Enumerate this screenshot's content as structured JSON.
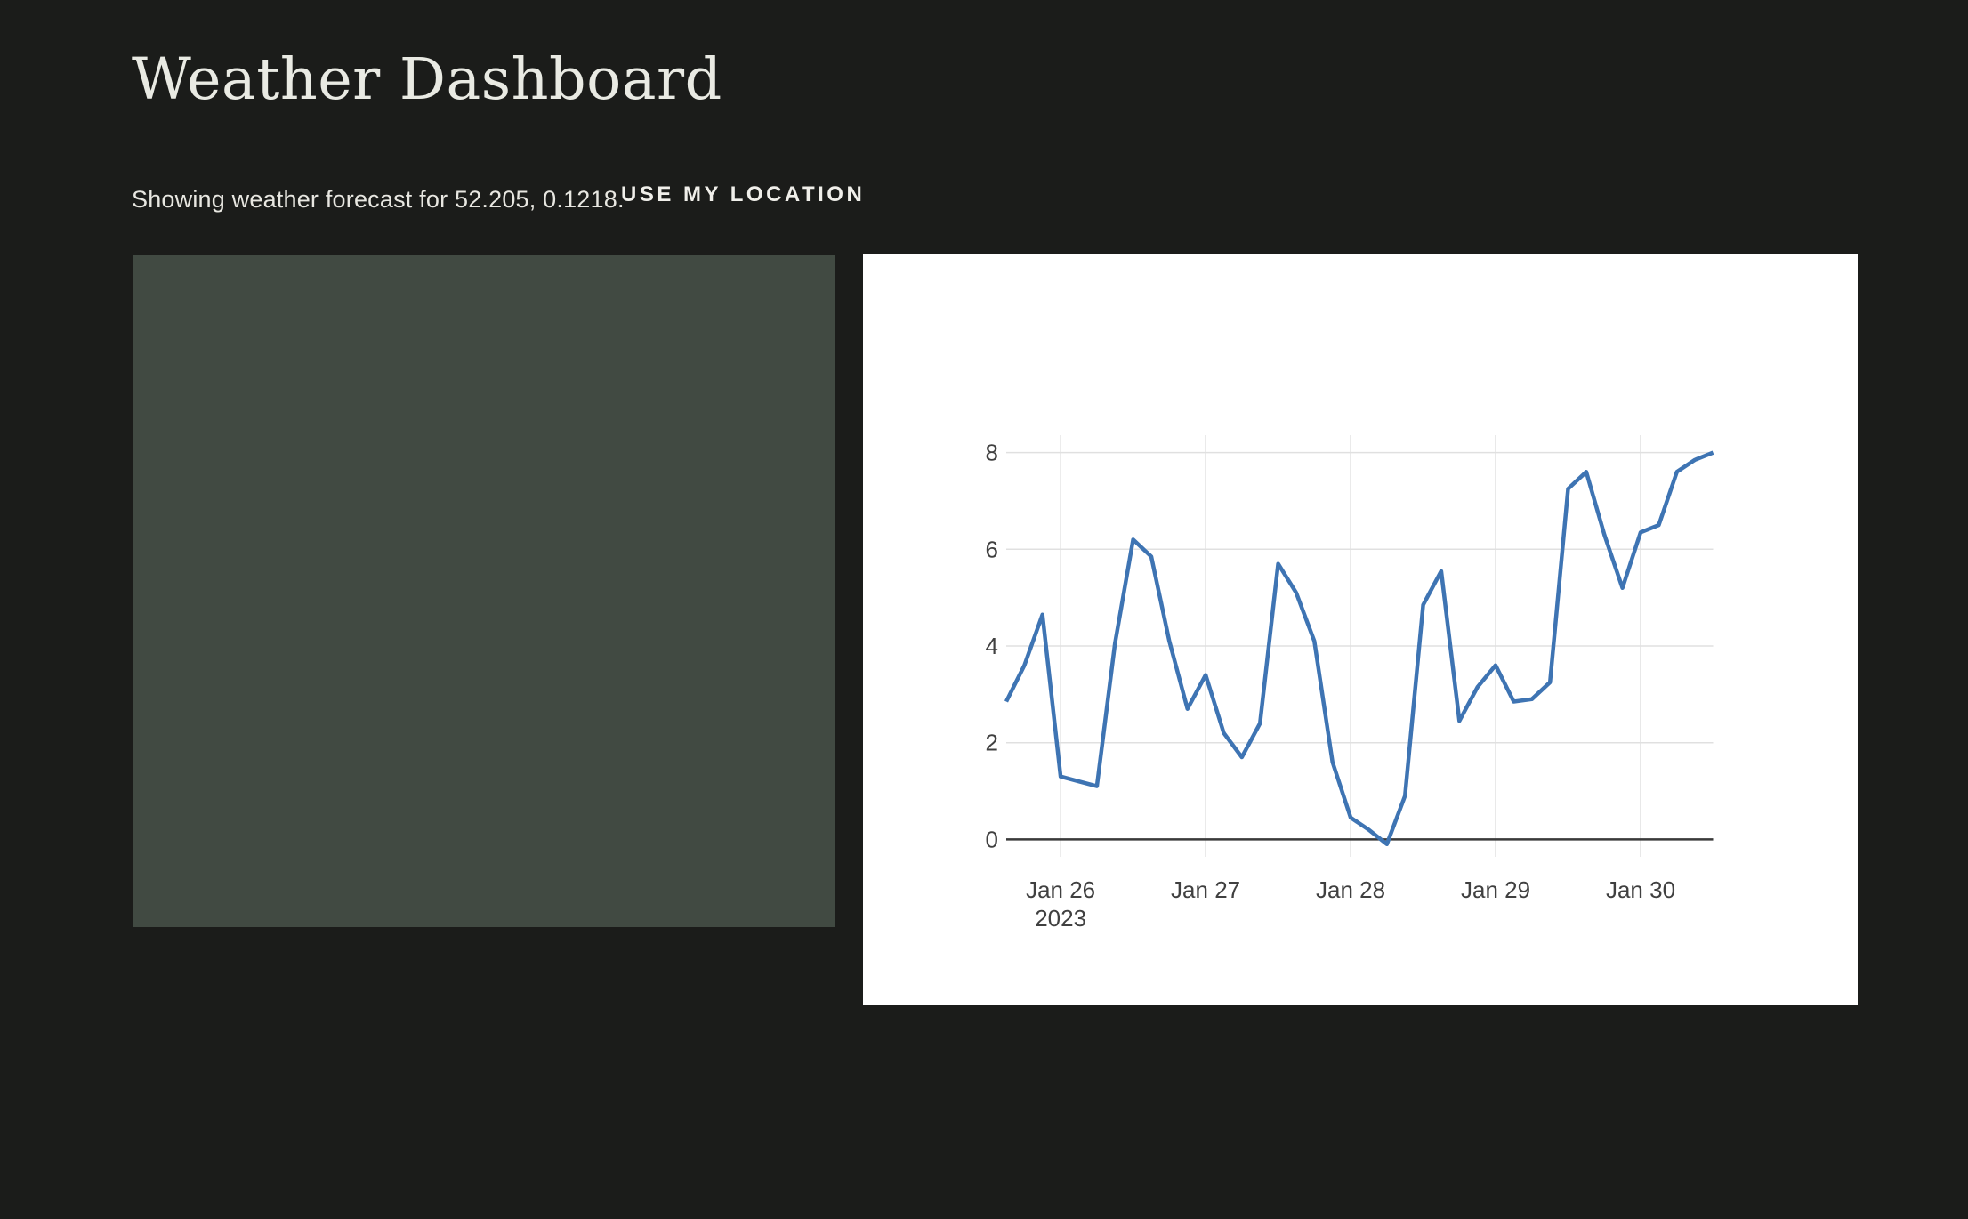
{
  "page": {
    "background_color": "#1b1c1a",
    "title": "Weather Dashboard"
  },
  "header": {
    "title": "Weather Dashboard"
  },
  "forecast_bar": {
    "status_text": "Showing weather forecast for 52.205, 0.1218.",
    "coordinates": "52.205, 0.1218",
    "location_button_label": "USE MY LOCATION"
  },
  "map": {
    "placeholder_color": "#414a42"
  },
  "chart_data": {
    "type": "line",
    "title": "",
    "xlabel": "",
    "ylabel": "",
    "x_start": "2023-01-25T15:00",
    "x_step_hours": 3,
    "x": [
      "2023-01-25T15:00",
      "2023-01-25T18:00",
      "2023-01-25T21:00",
      "2023-01-26T00:00",
      "2023-01-26T03:00",
      "2023-01-26T06:00",
      "2023-01-26T09:00",
      "2023-01-26T12:00",
      "2023-01-26T15:00",
      "2023-01-26T18:00",
      "2023-01-26T21:00",
      "2023-01-27T00:00",
      "2023-01-27T03:00",
      "2023-01-27T06:00",
      "2023-01-27T09:00",
      "2023-01-27T12:00",
      "2023-01-27T15:00",
      "2023-01-27T18:00",
      "2023-01-27T21:00",
      "2023-01-28T00:00",
      "2023-01-28T03:00",
      "2023-01-28T06:00",
      "2023-01-28T09:00",
      "2023-01-28T12:00",
      "2023-01-28T15:00",
      "2023-01-28T18:00",
      "2023-01-28T21:00",
      "2023-01-29T00:00",
      "2023-01-29T03:00",
      "2023-01-29T06:00",
      "2023-01-29T09:00",
      "2023-01-29T12:00",
      "2023-01-29T15:00",
      "2023-01-29T18:00",
      "2023-01-29T21:00",
      "2023-01-30T00:00",
      "2023-01-30T03:00",
      "2023-01-30T06:00",
      "2023-01-30T09:00",
      "2023-01-30T12:00"
    ],
    "values": [
      2.85,
      3.6,
      4.65,
      1.3,
      1.2,
      1.1,
      4.05,
      6.2,
      5.85,
      4.1,
      2.7,
      3.4,
      2.2,
      1.7,
      2.4,
      5.7,
      5.1,
      4.1,
      1.6,
      0.45,
      0.2,
      -0.1,
      0.9,
      4.85,
      5.55,
      2.45,
      3.15,
      3.6,
      2.85,
      2.9,
      3.25,
      7.25,
      7.6,
      6.3,
      5.2,
      6.35,
      6.5,
      7.6,
      7.85,
      8.0
    ],
    "x_tick_labels": [
      "Jan 26",
      "Jan 27",
      "Jan 28",
      "Jan 29",
      "Jan 30"
    ],
    "x_tick_indices": [
      3,
      11,
      19,
      27,
      35
    ],
    "x_first_tick_year_label": "2023",
    "y_ticks": [
      0,
      2,
      4,
      6,
      8
    ],
    "ylim": [
      -0.45,
      8.45
    ],
    "grid": true,
    "legend": "none",
    "line_color": "#3e74b3",
    "grid_color": "#e0e0e0",
    "zero_line_color": "#3a3a3a",
    "tick_label_color": "#404040",
    "panel_background": "#ffffff"
  }
}
